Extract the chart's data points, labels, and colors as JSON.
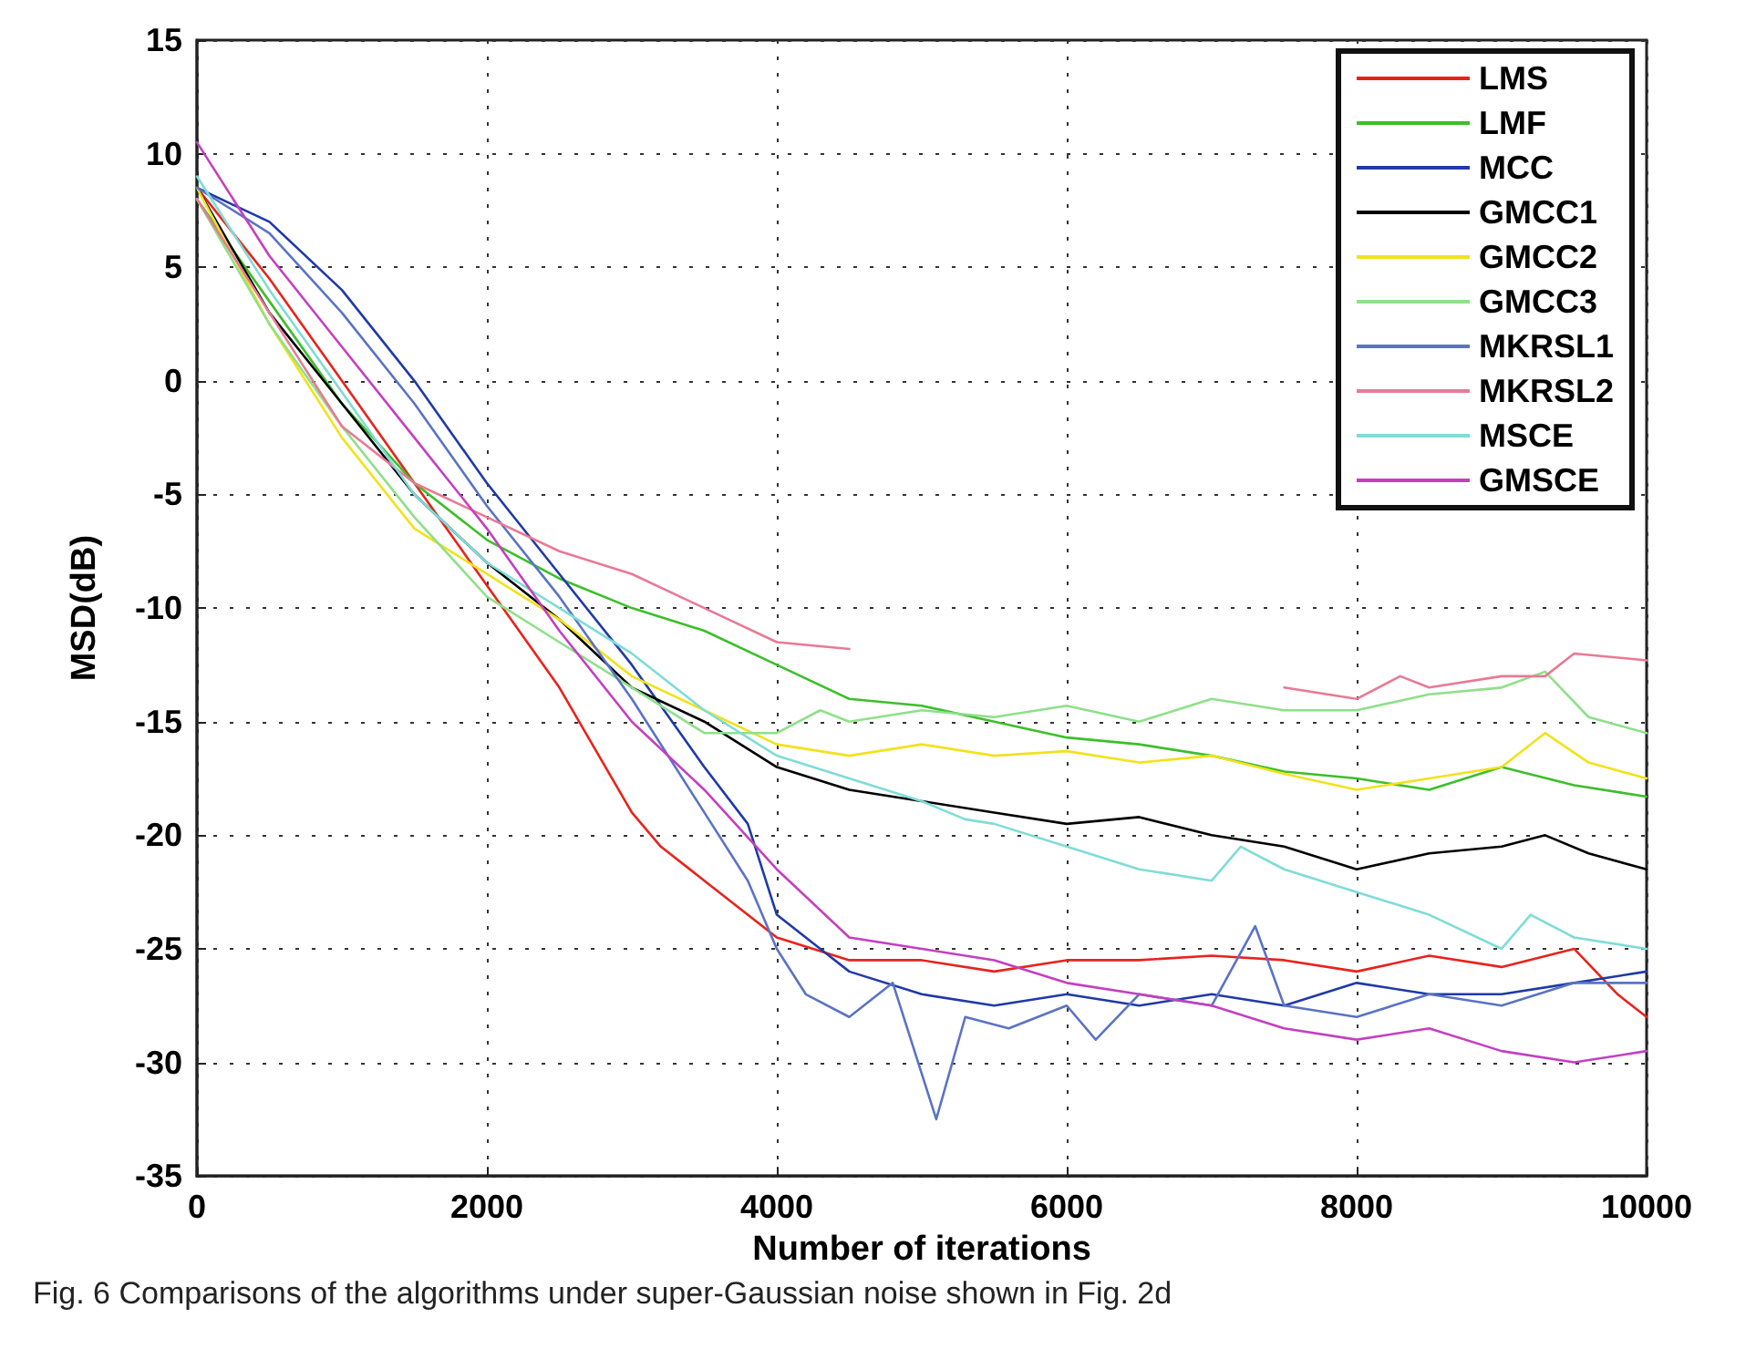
{
  "chart_data": {
    "type": "line",
    "xlabel": "Number of iterations",
    "ylabel": "MSD(dB)",
    "annotations": [
      "Fig. 6 Comparisons of the algorithms under super-Gaussian noise shown in Fig. 2d"
    ],
    "xlim": [
      0,
      10000
    ],
    "xticks": [
      0,
      2000,
      4000,
      6000,
      8000,
      10000
    ],
    "ylim": [
      -35,
      15
    ],
    "yticks": [
      -35,
      -30,
      -25,
      -20,
      -15,
      -10,
      -5,
      0,
      5,
      10,
      15
    ],
    "grid": true,
    "legend": "top right",
    "marker": "none",
    "line_style": "solid",
    "series": [
      {
        "name": "LMS",
        "color": "#e8231c",
        "x": [
          0,
          250,
          500,
          1000,
          1500,
          2000,
          2500,
          3000,
          3200,
          3500,
          4000,
          4500,
          5000,
          5500,
          6000,
          6500,
          7000,
          7500,
          8000,
          8500,
          9000,
          9500,
          9800,
          10000
        ],
        "values": [
          8.5,
          6.5,
          4.5,
          0,
          -4.5,
          -9,
          -13.5,
          -19,
          -20.5,
          -22,
          -24.5,
          -25.5,
          -25.5,
          -26,
          -25.5,
          -25.5,
          -25.3,
          -25.5,
          -26,
          -25.3,
          -25.8,
          -25,
          -27,
          -28
        ]
      },
      {
        "name": "LMF",
        "color": "#3cbf2a",
        "x": [
          0,
          500,
          1000,
          1500,
          2000,
          2500,
          3000,
          3500,
          4000,
          4500,
          5000,
          5500,
          6000,
          6500,
          7000,
          7500,
          8000,
          8500,
          9000,
          9500,
          10000
        ],
        "values": [
          8,
          3.5,
          -1,
          -4.5,
          -7,
          -8.7,
          -10,
          -11,
          -12.5,
          -14,
          -14.3,
          -15,
          -15.7,
          -16,
          -16.5,
          -17.2,
          -17.5,
          -18,
          -17,
          -17.8,
          -18.3
        ]
      },
      {
        "name": "MCC",
        "color": "#1f3aa8",
        "x": [
          0,
          500,
          1000,
          1500,
          2000,
          2500,
          3000,
          3500,
          3800,
          4000,
          4300,
          4500,
          5000,
          5500,
          6000,
          6500,
          7000,
          7500,
          8000,
          8500,
          9000,
          9500,
          10000
        ],
        "values": [
          8.5,
          7,
          4,
          0,
          -4.5,
          -8.5,
          -12.5,
          -17,
          -19.5,
          -23.5,
          -25,
          -26,
          -27,
          -27.5,
          -27,
          -27.5,
          -27,
          -27.5,
          -26.5,
          -27,
          -27,
          -26.5,
          -26
        ]
      },
      {
        "name": "GMCC1",
        "color": "#000000",
        "x": [
          0,
          500,
          1000,
          1500,
          2000,
          2500,
          3000,
          3500,
          4000,
          4500,
          5000,
          5500,
          6000,
          6500,
          7000,
          7500,
          8000,
          8500,
          9000,
          9300,
          9600,
          10000
        ],
        "values": [
          8.5,
          3,
          -1,
          -5,
          -8,
          -10.5,
          -13.5,
          -15,
          -17,
          -18,
          -18.5,
          -19,
          -19.5,
          -19.2,
          -20,
          -20.5,
          -21.5,
          -20.8,
          -20.5,
          -20,
          -20.8,
          -21.5
        ]
      },
      {
        "name": "GMCC2",
        "color": "#f2e21b",
        "x": [
          0,
          500,
          1000,
          1500,
          2000,
          2500,
          3000,
          3500,
          4000,
          4500,
          5000,
          5500,
          6000,
          6500,
          7000,
          7500,
          8000,
          8500,
          9000,
          9300,
          9600,
          10000
        ],
        "values": [
          8.5,
          2.5,
          -2.5,
          -6.5,
          -8.5,
          -10.5,
          -13,
          -14.5,
          -16,
          -16.5,
          -16,
          -16.5,
          -16.3,
          -16.8,
          -16.5,
          -17.3,
          -18,
          -17.5,
          -17,
          -15.5,
          -16.8,
          -17.5
        ]
      },
      {
        "name": "GMCC3",
        "color": "#8fe08a",
        "x": [
          0,
          500,
          1000,
          1500,
          2000,
          2500,
          3000,
          3500,
          4000,
          4300,
          4500,
          5000,
          5500,
          6000,
          6500,
          7000,
          7500,
          8000,
          8500,
          9000,
          9300,
          9600,
          10000
        ],
        "values": [
          8,
          2.5,
          -2,
          -6,
          -9.5,
          -11.5,
          -13.5,
          -15.5,
          -15.5,
          -14.5,
          -15,
          -14.5,
          -14.8,
          -14.3,
          -15,
          -14,
          -14.5,
          -14.5,
          -13.8,
          -13.5,
          -12.8,
          -14.8,
          -15.5
        ]
      },
      {
        "name": "MKRSL1",
        "color": "#5a73c4",
        "x": [
          0,
          500,
          1000,
          1500,
          2000,
          2500,
          3000,
          3500,
          3800,
          4000,
          4200,
          4500,
          4800,
          5100,
          5300,
          5600,
          6000,
          6200,
          6500,
          7000,
          7300,
          7500,
          8000,
          8500,
          9000,
          9500,
          10000
        ],
        "values": [
          8.5,
          6.5,
          3,
          -1,
          -5.5,
          -9.5,
          -14,
          -19,
          -22,
          -25,
          -27,
          -28,
          -26.5,
          -32.5,
          -28,
          -28.5,
          -27.5,
          -29,
          -27,
          -27.5,
          -24,
          -27.5,
          -28,
          -27,
          -27.5,
          -26.5,
          -26.5
        ]
      },
      {
        "name": "MKRSL2",
        "color": "#e87a95",
        "x": [
          0,
          500,
          1000,
          1500,
          2000,
          2500,
          3000,
          3500,
          4000,
          4500,
          5000,
          5500,
          6000,
          6500,
          7000,
          7500,
          8000,
          8300,
          8500,
          9000,
          9300,
          9500,
          10000
        ],
        "values": [
          8,
          3,
          -2,
          -4.5,
          -6,
          -7.5,
          -8.5,
          -10,
          -11.5,
          -11.8,
          null,
          null,
          null,
          null,
          null,
          -13.5,
          -14,
          -13,
          -13.5,
          -13,
          -13,
          -12,
          -12.3
        ]
      },
      {
        "name": "MSCE",
        "color": "#7fdcd8",
        "x": [
          0,
          500,
          1000,
          1500,
          2000,
          2500,
          3000,
          3500,
          4000,
          4500,
          5000,
          5300,
          5500,
          6000,
          6500,
          7000,
          7200,
          7500,
          8000,
          8500,
          9000,
          9200,
          9500,
          10000
        ],
        "values": [
          9,
          4,
          -0.5,
          -5,
          -8,
          -10,
          -12,
          -14.5,
          -16.5,
          -17.5,
          -18.5,
          -19.3,
          -19.5,
          -20.5,
          -21.5,
          -22,
          -20.5,
          -21.5,
          -22.5,
          -23.5,
          -25,
          -23.5,
          -24.5,
          -25
        ]
      },
      {
        "name": "GMSCE",
        "color": "#c43fc0",
        "x": [
          0,
          500,
          1000,
          1500,
          2000,
          2500,
          3000,
          3500,
          4000,
          4500,
          5000,
          5500,
          6000,
          6500,
          7000,
          7500,
          8000,
          8500,
          9000,
          9500,
          10000
        ],
        "values": [
          10.5,
          5.5,
          1.5,
          -2.5,
          -6.5,
          -11,
          -15,
          -18,
          -21.5,
          -24.5,
          -25,
          -25.5,
          -26.5,
          -27,
          -27.5,
          -28.5,
          -29,
          -28.5,
          -29.5,
          -30,
          -29.5
        ]
      }
    ]
  }
}
